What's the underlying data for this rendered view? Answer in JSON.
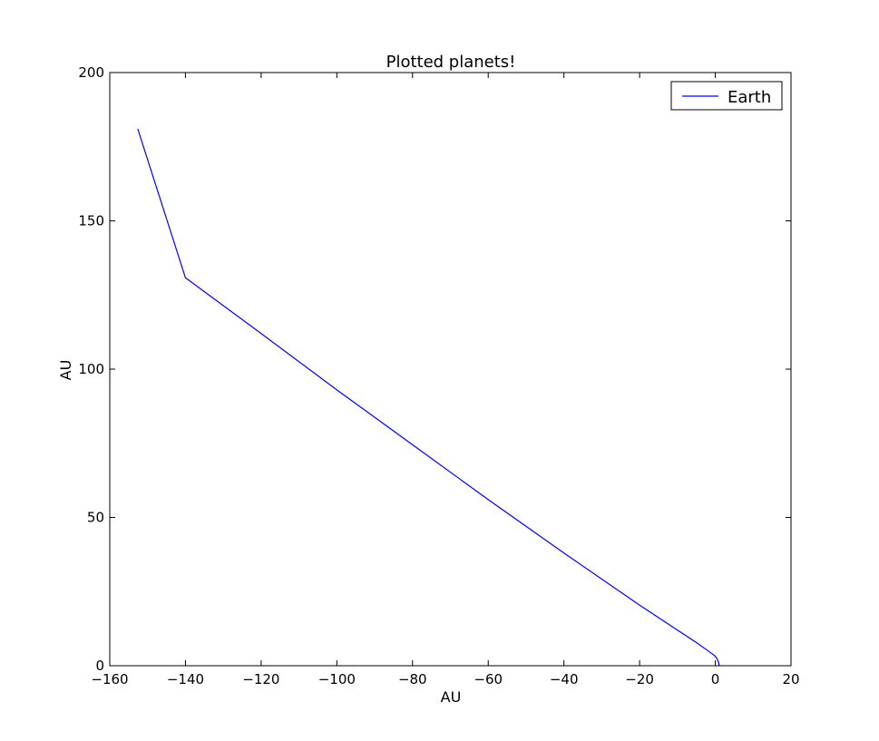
{
  "chart_data": {
    "type": "line",
    "title": "Plotted planets!",
    "xlabel": "AU",
    "ylabel": "AU",
    "xlim": [
      -160,
      20
    ],
    "ylim": [
      0,
      200
    ],
    "xticks": [
      -160,
      -140,
      -120,
      -100,
      -80,
      -60,
      -40,
      -20,
      0,
      20
    ],
    "yticks": [
      0,
      50,
      100,
      150,
      200
    ],
    "xtick_labels": [
      "−160",
      "−140",
      "−120",
      "−100",
      "−80",
      "−60",
      "−40",
      "−20",
      "0",
      "20"
    ],
    "ytick_labels": [
      "0",
      "50",
      "100",
      "150",
      "200"
    ],
    "grid": false,
    "legend": {
      "position": "top-right"
    },
    "series": [
      {
        "name": "Earth",
        "color": "#0000ff",
        "x": [
          1.0,
          0.9,
          0.6,
          0.0,
          -2.0,
          -5.0,
          -10.0,
          -20.0,
          -40.0,
          -60.0,
          -80.0,
          -100.0,
          -120.0,
          -140.0,
          -152.6
        ],
        "y": [
          0.0,
          1.0,
          2.0,
          3.2,
          5.1,
          7.8,
          12.0,
          20.4,
          38.0,
          56.0,
          74.5,
          93.0,
          112.0,
          130.8,
          181.0
        ]
      }
    ]
  }
}
